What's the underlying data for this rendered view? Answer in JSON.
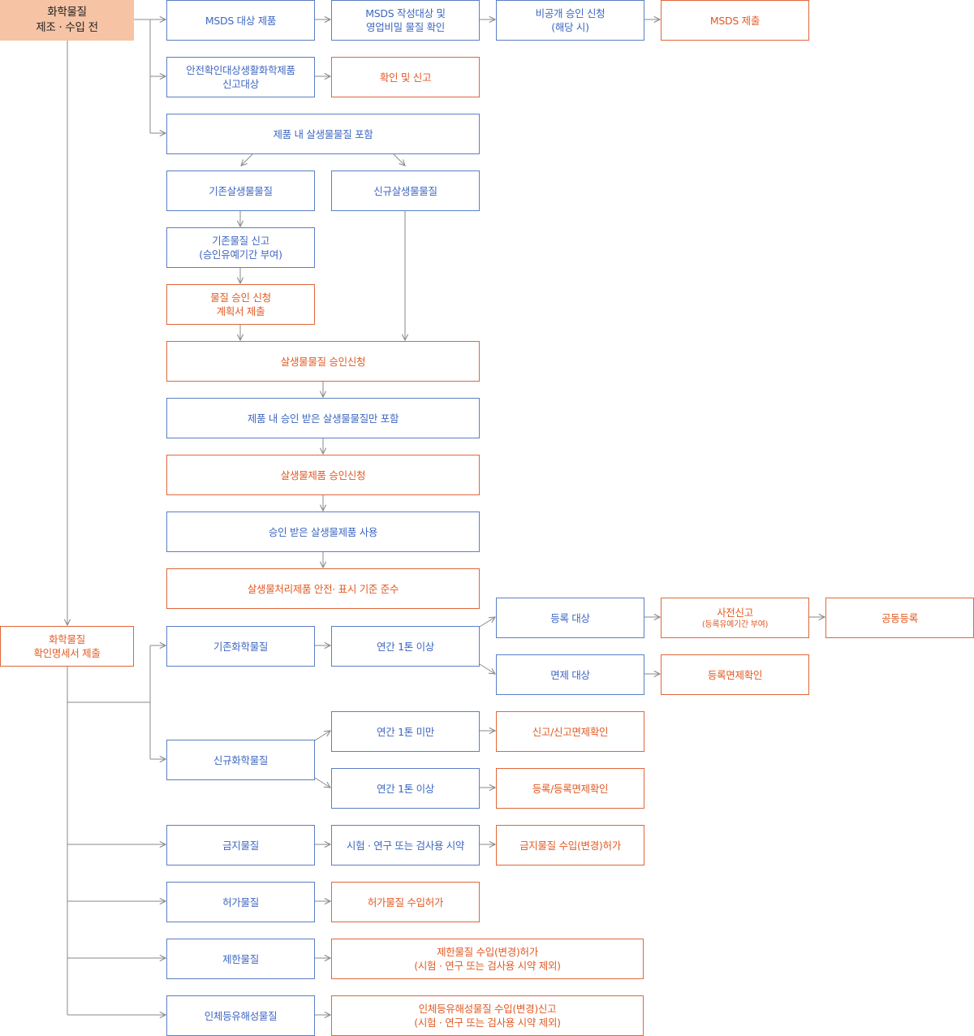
{
  "nodes": {
    "start_pre": {
      "line1": "화학물질",
      "line2": "제조 · 수입 전"
    },
    "msds_target": "MSDS 대상 제품",
    "msds_check": {
      "line1": "MSDS 작성대상 및",
      "line2": "영업비밀 물질 확인"
    },
    "nondisclosure": {
      "line1": "비공개 승인 신청",
      "line2": "(해당 시)"
    },
    "msds_submit": "MSDS 제출",
    "safety_target": {
      "line1": "안전확인대상생활화학제품",
      "line2": "신고대상"
    },
    "safety_report": "확인 및 신고",
    "biocide_contained": "제품 내 살생물물질 포함",
    "existing_biocide": "기존살생물물질",
    "new_biocide": "신규살생물물질",
    "existing_report": {
      "line1": "기존물질 신고",
      "line2": "(승인유예기간 부여)"
    },
    "approval_plan": {
      "line1": "물질 승인 신청",
      "line2": "계획서 제출"
    },
    "biocide_approval": "살생물물질 승인신청",
    "approved_only": "제품 내 승인 받은 살생물물질만 포함",
    "product_approval": "살생물제품 승인신청",
    "use_approved": "승인 받은 살생물제품 사용",
    "treated_article": "살생물처리제품 안전· 표시 기준 준수",
    "start_confirm": {
      "line1": "화학물질",
      "line2": "확인명세서 제출"
    },
    "existing_chem": "기존화학물질",
    "over_1ton_a": "연간 1톤 이상",
    "reg_target": "등록 대상",
    "pre_report": {
      "line1": "사전신고",
      "line2": "(등록유예기간 부여)"
    },
    "joint_reg": "공동등록",
    "exempt_target": "면제 대상",
    "exempt_confirm": "등록면제확인",
    "new_chem": "신규화학물질",
    "under_1ton": "연간 1톤 미만",
    "report_exempt": "신고/신고면제확인",
    "over_1ton_b": "연간 1톤 이상",
    "reg_exempt": "등록/등록면제확인",
    "prohibited": "금지물질",
    "research_reagent": "시험 · 연구 또는 검사용 시약",
    "prohibited_permit": "금지물질 수입(변경)허가",
    "permitted": "허가물질",
    "permitted_import": "허가물질 수입허가",
    "restricted": "제한물질",
    "restricted_permit": {
      "line1": "제한물질 수입(변경)허가",
      "line2": "(시험 · 연구 또는 검사용 시약 제외)"
    },
    "harmful": "인체등유해성물질",
    "harmful_report": {
      "line1": "인체등유해성물질 수입(변경)신고",
      "line2": "(시험 · 연구 또는 검사용 시약 제외)"
    }
  },
  "colors": {
    "start_fill": "#f6c3a5",
    "action_orange": "#e25a24",
    "category_blue": "#3e67c2",
    "connector_gray": "#8a8a8a"
  }
}
